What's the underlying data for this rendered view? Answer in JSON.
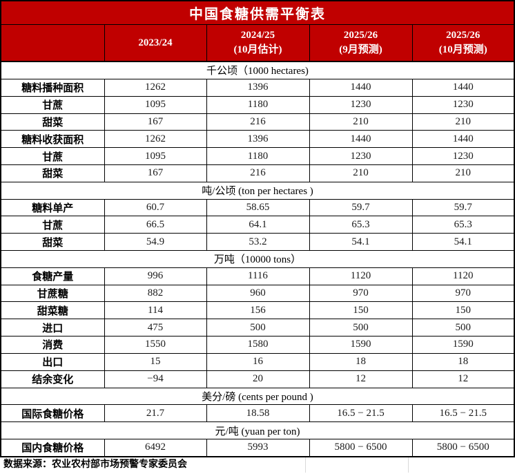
{
  "title": "中国食糖供需平衡表",
  "source": "数据来源：农业农村部市场预警专家委员会",
  "colors": {
    "accent": "#c00000",
    "accent_text": "#ffffff",
    "border": "#000000",
    "gridline_light": "#d9d9d9"
  },
  "header": {
    "columns": [
      {
        "line1": "",
        "line2": ""
      },
      {
        "line1": "2023/24",
        "line2": ""
      },
      {
        "line1": "2024/25",
        "line2": "(10月估计)"
      },
      {
        "line1": "2025/26",
        "line2": "(9月预测)"
      },
      {
        "line1": "2025/26",
        "line2": "(10月预测)"
      }
    ]
  },
  "rows": [
    {
      "type": "section",
      "label": "千公顷（1000 hectares)"
    },
    {
      "type": "data",
      "label": "糖料播种面积",
      "values": [
        "1262",
        "1396",
        "1440",
        "1440"
      ]
    },
    {
      "type": "data",
      "label": "甘蔗",
      "values": [
        "1095",
        "1180",
        "1230",
        "1230"
      ]
    },
    {
      "type": "data",
      "label": "甜菜",
      "values": [
        "167",
        "216",
        "210",
        "210"
      ]
    },
    {
      "type": "data",
      "label": "糖料收获面积",
      "values": [
        "1262",
        "1396",
        "1440",
        "1440"
      ]
    },
    {
      "type": "data",
      "label": "甘蔗",
      "values": [
        "1095",
        "1180",
        "1230",
        "1230"
      ]
    },
    {
      "type": "data",
      "label": "甜菜",
      "values": [
        "167",
        "216",
        "210",
        "210"
      ]
    },
    {
      "type": "section",
      "label": "吨/公顷 (ton per hectares )"
    },
    {
      "type": "data",
      "label": "糖料单产",
      "values": [
        "60.7",
        "58.65",
        "59.7",
        "59.7"
      ]
    },
    {
      "type": "data",
      "label": "甘蔗",
      "values": [
        "66.5",
        "64.1",
        "65.3",
        "65.3"
      ]
    },
    {
      "type": "data",
      "label": "甜菜",
      "values": [
        "54.9",
        "53.2",
        "54.1",
        "54.1"
      ]
    },
    {
      "type": "section",
      "label": "万吨（10000 tons）"
    },
    {
      "type": "data",
      "label": "食糖产量",
      "values": [
        "996",
        "1116",
        "1120",
        "1120"
      ]
    },
    {
      "type": "data",
      "label": "甘蔗糖",
      "values": [
        "882",
        "960",
        "970",
        "970"
      ]
    },
    {
      "type": "data",
      "label": "甜菜糖",
      "values": [
        "114",
        "156",
        "150",
        "150"
      ]
    },
    {
      "type": "data",
      "label": "进口",
      "values": [
        "475",
        "500",
        "500",
        "500"
      ]
    },
    {
      "type": "data",
      "label": "消费",
      "values": [
        "1550",
        "1580",
        "1590",
        "1590"
      ]
    },
    {
      "type": "data",
      "label": "出口",
      "values": [
        "15",
        "16",
        "18",
        "18"
      ]
    },
    {
      "type": "data",
      "label": "结余变化",
      "values": [
        "−94",
        "20",
        "12",
        "12"
      ]
    },
    {
      "type": "section",
      "label": "美分/磅 (cents per pound )"
    },
    {
      "type": "data",
      "label": "国际食糖价格",
      "values": [
        "21.7",
        "18.58",
        "16.5 − 21.5",
        "16.5 − 21.5"
      ]
    },
    {
      "type": "section",
      "label": "元/吨 (yuan per ton)"
    },
    {
      "type": "data",
      "label": "国内食糖价格",
      "values": [
        "6492",
        "5993",
        "5800 − 6500",
        "5800 − 6500"
      ]
    }
  ]
}
